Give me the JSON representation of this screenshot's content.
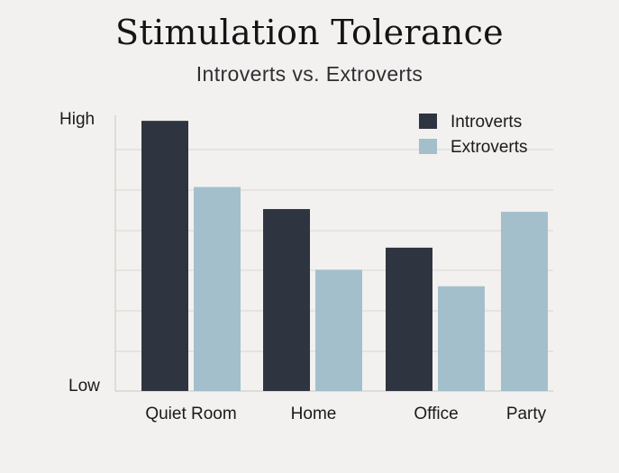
{
  "chart_data": {
    "type": "bar",
    "title": "Stimulation Tolerance",
    "subtitle": "Introverts vs. Extroverts",
    "categories": [
      "Quiet Room",
      "Home",
      "Office",
      "Party"
    ],
    "series": [
      {
        "name": "Introverts",
        "color": "#2f3540",
        "values": [
          9.8,
          6.6,
          5.2,
          null
        ]
      },
      {
        "name": "Extroverts",
        "color": "#a3bfcc",
        "values": [
          7.4,
          4.4,
          3.8,
          6.5
        ]
      }
    ],
    "ylim": [
      0,
      10
    ],
    "y_tick_labels": {
      "low": "Low",
      "high": "High"
    },
    "grid": true,
    "legend_position": "top-right",
    "xlabel": "",
    "ylabel": ""
  }
}
